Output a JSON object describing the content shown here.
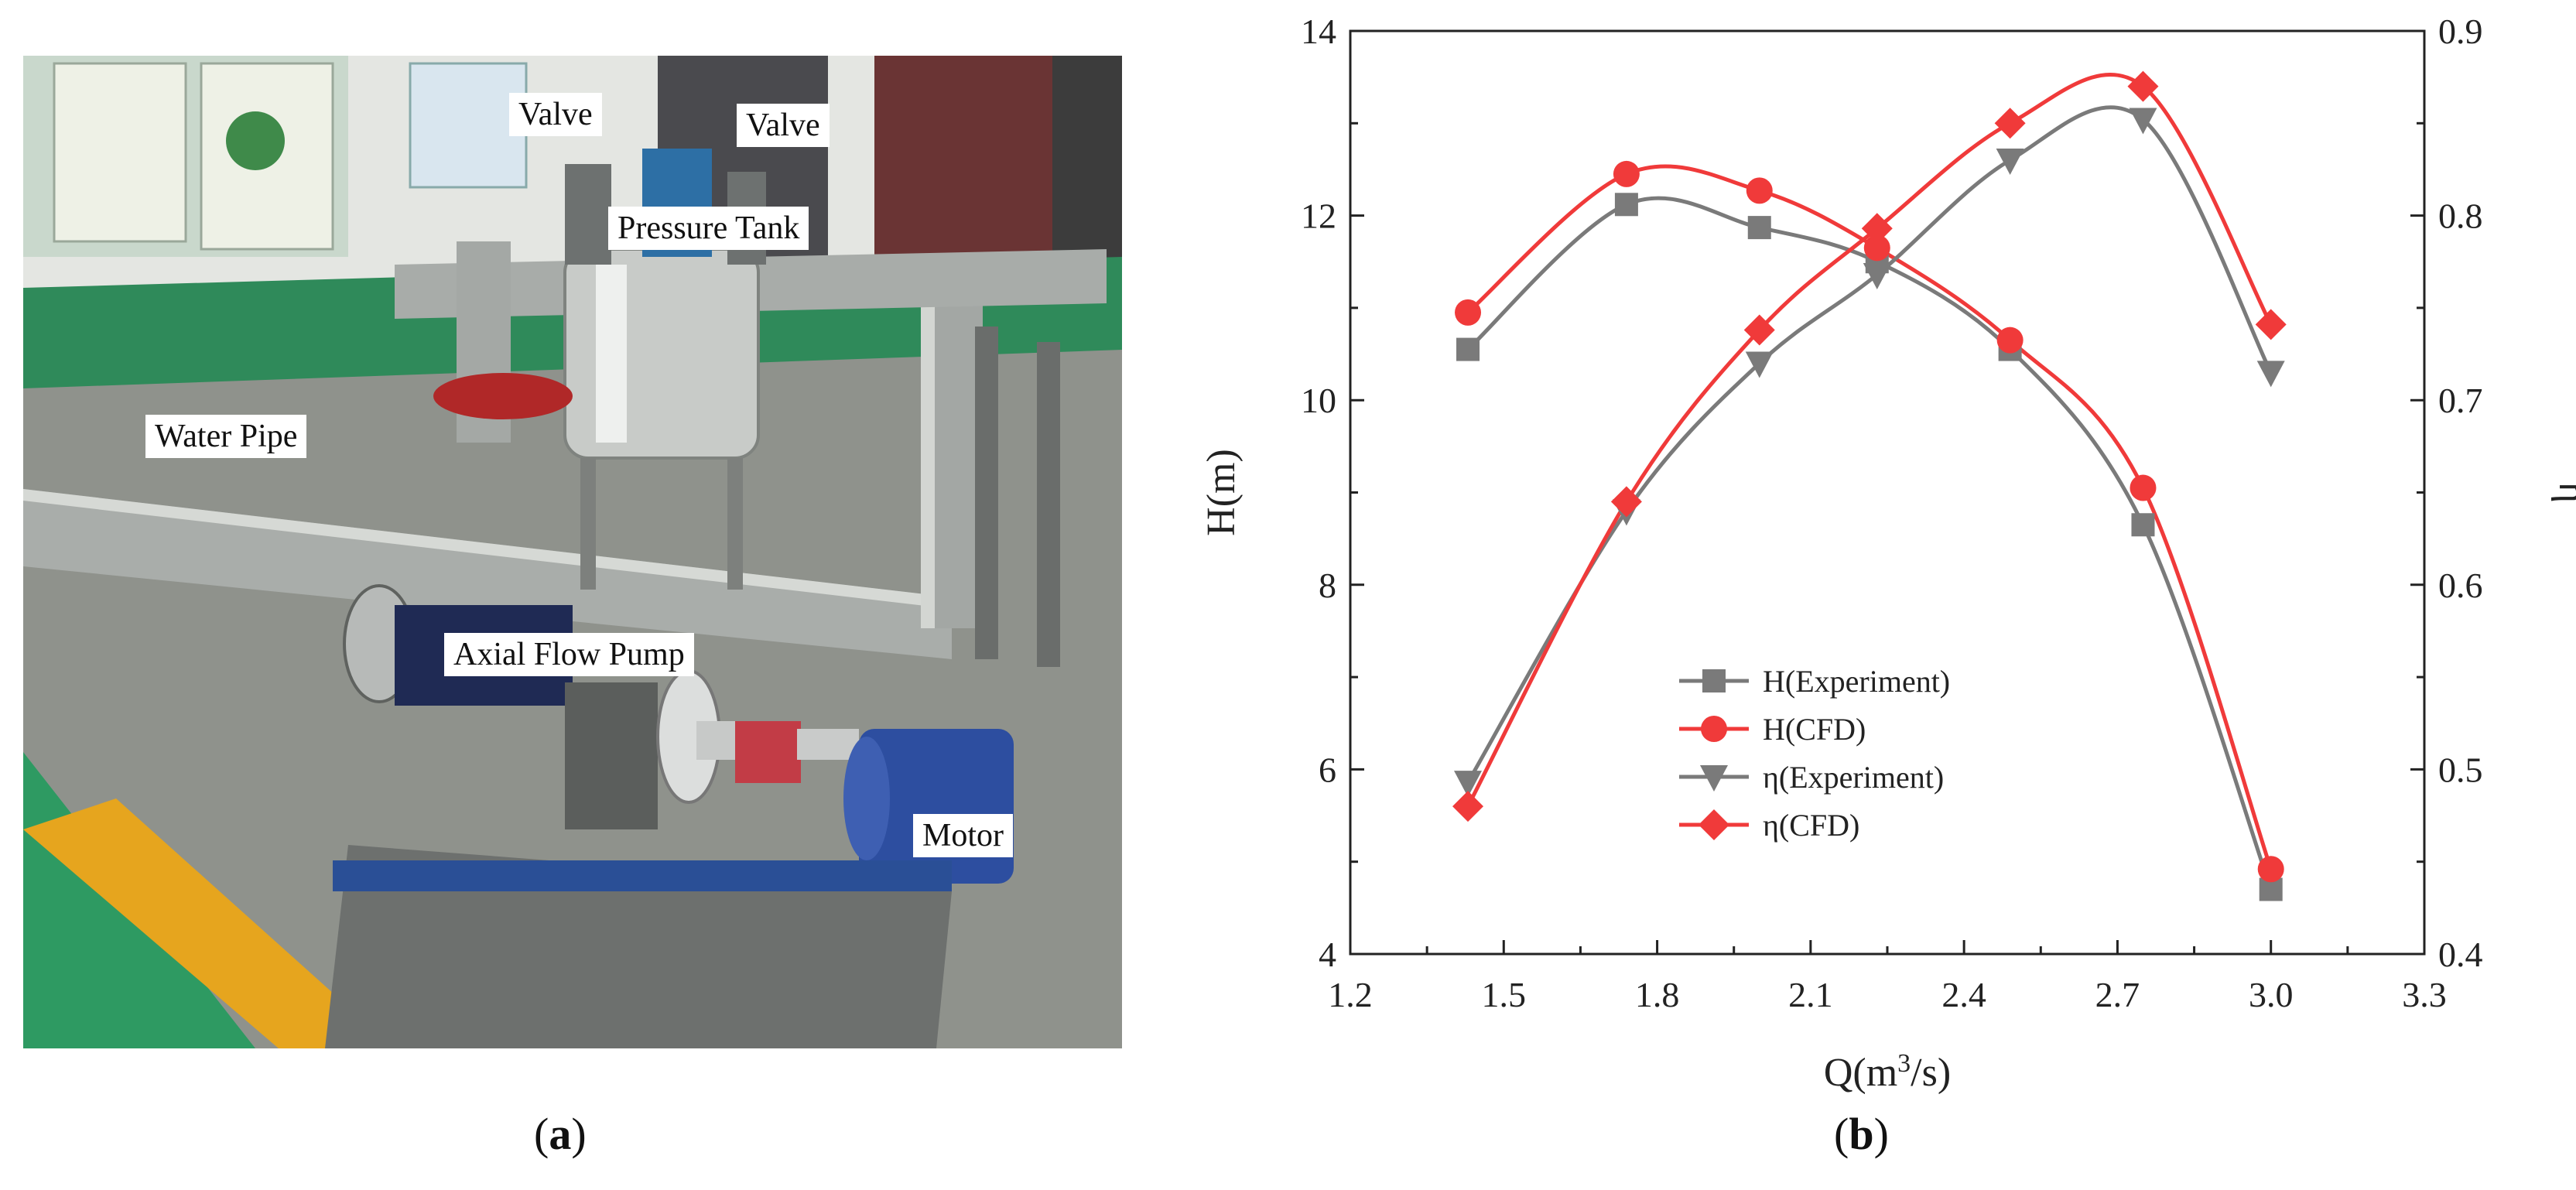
{
  "panel_a": {
    "caption_open": "(",
    "caption_letter": "a",
    "caption_close": ")",
    "labels": {
      "valve_left": "Valve",
      "valve_right": "Valve",
      "pressure_tank": "Pressure Tank",
      "water_pipe": "Water Pipe",
      "axial_flow_pump": "Axial Flow Pump",
      "motor": "Motor"
    }
  },
  "panel_b": {
    "caption_open": "(",
    "caption_letter": "b",
    "caption_close": ")"
  },
  "colors": {
    "experiment": "#7a7a7a",
    "cfd": "#f03a3a",
    "axis": "#222222"
  },
  "chart_data": {
    "type": "line",
    "xlabel_base": "Q(m",
    "xlabel_sup": "3",
    "xlabel_tail": "/s)",
    "ylabel_left": "H(m)",
    "ylabel_right": "η",
    "xlim": [
      1.2,
      3.3
    ],
    "ylim_left": [
      4,
      14
    ],
    "ylim_right": [
      0.4,
      0.9
    ],
    "x_ticks": [
      1.2,
      1.5,
      1.8,
      2.1,
      2.4,
      2.7,
      3.0,
      3.3
    ],
    "x_tick_labels": [
      "1.2",
      "1.5",
      "1.8",
      "2.1",
      "2.4",
      "2.7",
      "3.0",
      "3.3"
    ],
    "y_left_ticks": [
      4,
      6,
      8,
      10,
      12,
      14
    ],
    "y_left_tick_labels": [
      "4",
      "6",
      "8",
      "10",
      "12",
      "14"
    ],
    "y_right_ticks": [
      0.4,
      0.5,
      0.6,
      0.7,
      0.8,
      0.9
    ],
    "y_right_tick_labels": [
      "0.4",
      "0.5",
      "0.6",
      "0.7",
      "0.8",
      "0.9"
    ],
    "legend_position": "lower-left",
    "grid": false,
    "series": [
      {
        "name": "H(Experiment)",
        "axis": "left",
        "marker": "square",
        "color": "#7a7a7a",
        "x": [
          1.43,
          1.74,
          2.0,
          2.23,
          2.49,
          2.75,
          3.0
        ],
        "y": [
          10.55,
          12.12,
          11.87,
          11.5,
          10.55,
          8.65,
          4.7
        ]
      },
      {
        "name": "H(CFD)",
        "axis": "left",
        "marker": "circle",
        "color": "#f03a3a",
        "x": [
          1.43,
          1.74,
          2.0,
          2.23,
          2.49,
          2.75,
          3.0
        ],
        "y": [
          10.95,
          12.45,
          12.27,
          11.65,
          10.65,
          9.05,
          4.92
        ]
      },
      {
        "name": "η(Experiment)",
        "axis": "right",
        "marker": "triangle-down",
        "color": "#7a7a7a",
        "x": [
          1.43,
          1.74,
          2.0,
          2.23,
          2.49,
          2.75,
          3.0
        ],
        "y": [
          0.493,
          0.64,
          0.72,
          0.768,
          0.83,
          0.852,
          0.715
        ]
      },
      {
        "name": "η(CFD)",
        "axis": "right",
        "marker": "diamond",
        "color": "#f03a3a",
        "x": [
          1.43,
          1.74,
          2.0,
          2.23,
          2.49,
          2.75,
          3.0
        ],
        "y": [
          0.48,
          0.645,
          0.738,
          0.793,
          0.85,
          0.87,
          0.741
        ]
      }
    ]
  }
}
